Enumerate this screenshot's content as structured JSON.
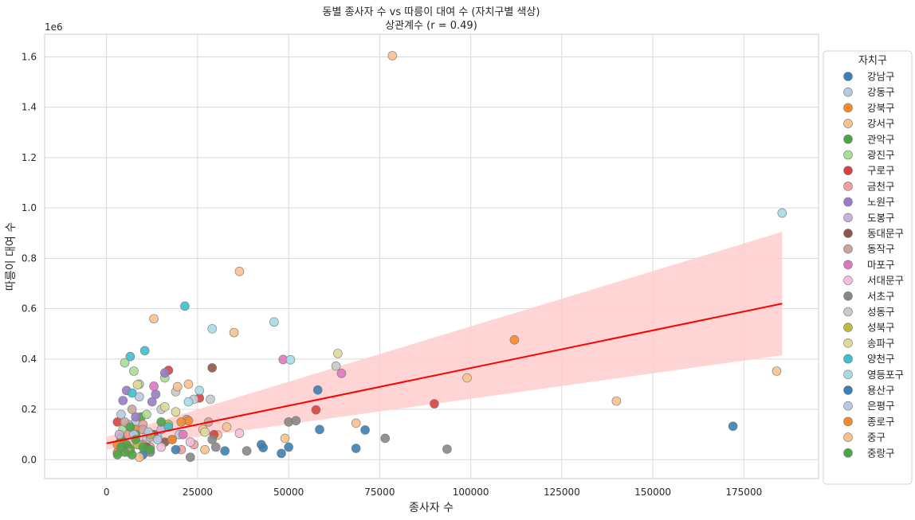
{
  "chart_data": {
    "type": "scatter",
    "title": "동별 종사자 수 vs 따릉이 대여 수 (자치구별 색상)",
    "subtitle": "상관계수 (r = 0.49)",
    "xlabel": "종사자 수",
    "ylabel": "따릉이 대여 수",
    "y_offset_text": "1e6",
    "xlim": [
      -17000,
      195500
    ],
    "ylim": [
      -0.075,
      1.69
    ],
    "y_scale_multiplier": 1000000,
    "x_ticks": [
      0,
      25000,
      50000,
      75000,
      100000,
      125000,
      150000,
      175000
    ],
    "x_tick_labels": [
      "0",
      "25000",
      "50000",
      "75000",
      "100000",
      "125000",
      "150000",
      "175000"
    ],
    "y_ticks": [
      0.0,
      0.2,
      0.4,
      0.6,
      0.8,
      1.0,
      1.2,
      1.4,
      1.6
    ],
    "y_tick_labels": [
      "0.0",
      "0.2",
      "0.4",
      "0.6",
      "0.8",
      "1.0",
      "1.2",
      "1.4",
      "1.6"
    ],
    "grid": true,
    "legend_title": "자치구",
    "legend_position": "outside-right",
    "regression": {
      "color": "#ff0000",
      "band_color": "#ffcccc",
      "x": [
        0,
        185500
      ],
      "y": [
        0.065,
        0.62
      ],
      "ci_upper": [
        0.09,
        0.905
      ],
      "ci_lower": [
        0.04,
        0.415
      ]
    },
    "series": [
      {
        "name": "강남구",
        "color": "#3b7fb4",
        "points": [
          [
            172000,
            0.133
          ],
          [
            68500,
            0.045
          ],
          [
            71000,
            0.118
          ],
          [
            58500,
            0.12
          ],
          [
            48000,
            0.025
          ],
          [
            42500,
            0.06
          ],
          [
            43000,
            0.048
          ],
          [
            50000,
            0.05
          ],
          [
            32500,
            0.035
          ]
        ]
      },
      {
        "name": "강동구",
        "color": "#b7c9e3",
        "points": [
          [
            6500,
            0.12
          ],
          [
            8000,
            0.15
          ],
          [
            9000,
            0.25
          ],
          [
            11000,
            0.08
          ],
          [
            20000,
            0.1
          ],
          [
            14000,
            0.09
          ]
        ]
      },
      {
        "name": "강북구",
        "color": "#f5892b",
        "points": [
          [
            4000,
            0.08
          ],
          [
            5000,
            0.1
          ],
          [
            6000,
            0.05
          ],
          [
            8000,
            0.12
          ],
          [
            3000,
            0.03
          ],
          [
            10000,
            0.06
          ]
        ]
      },
      {
        "name": "강서구",
        "color": "#f8c18e",
        "points": [
          [
            78500,
            1.605
          ],
          [
            36500,
            0.748
          ],
          [
            140000,
            0.233
          ],
          [
            99000,
            0.325
          ],
          [
            184000,
            0.352
          ],
          [
            49000,
            0.085
          ],
          [
            26500,
            0.12
          ],
          [
            30500,
            0.098
          ]
        ]
      },
      {
        "name": "관악구",
        "color": "#4aa546",
        "points": [
          [
            4000,
            0.09
          ],
          [
            5500,
            0.06
          ],
          [
            6500,
            0.04
          ],
          [
            8000,
            0.1
          ],
          [
            9500,
            0.17
          ],
          [
            3000,
            0.02
          ]
        ]
      },
      {
        "name": "광진구",
        "color": "#a8dd95",
        "points": [
          [
            5000,
            0.385
          ],
          [
            7500,
            0.352
          ],
          [
            9000,
            0.3
          ],
          [
            16000,
            0.325
          ],
          [
            11000,
            0.18
          ],
          [
            4500,
            0.12
          ]
        ]
      },
      {
        "name": "구로구",
        "color": "#d9413f",
        "points": [
          [
            90000,
            0.222
          ],
          [
            57500,
            0.198
          ],
          [
            17000,
            0.355
          ],
          [
            25500,
            0.245
          ],
          [
            29500,
            0.1
          ],
          [
            3000,
            0.15
          ]
        ]
      },
      {
        "name": "금천구",
        "color": "#f1a09d",
        "points": [
          [
            6000,
            0.1
          ],
          [
            10000,
            0.14
          ],
          [
            12000,
            0.05
          ],
          [
            20500,
            0.04
          ],
          [
            24000,
            0.06
          ]
        ]
      },
      {
        "name": "노원구",
        "color": "#9a7cc4",
        "points": [
          [
            5500,
            0.275
          ],
          [
            4500,
            0.235
          ],
          [
            13500,
            0.26
          ],
          [
            16000,
            0.345
          ],
          [
            12500,
            0.23
          ],
          [
            8000,
            0.17
          ]
        ]
      },
      {
        "name": "도봉구",
        "color": "#c6b2d7",
        "points": [
          [
            3500,
            0.1
          ],
          [
            6000,
            0.14
          ],
          [
            9000,
            0.06
          ],
          [
            12000,
            0.09
          ],
          [
            15000,
            0.12
          ]
        ]
      },
      {
        "name": "동대문구",
        "color": "#8d584b",
        "points": [
          [
            29000,
            0.365
          ],
          [
            13000,
            0.1
          ],
          [
            16000,
            0.07
          ],
          [
            18000,
            0.08
          ],
          [
            11000,
            0.05
          ]
        ]
      },
      {
        "name": "동작구",
        "color": "#c9a69b",
        "points": [
          [
            5000,
            0.15
          ],
          [
            7000,
            0.2
          ],
          [
            10000,
            0.12
          ],
          [
            28000,
            0.15
          ],
          [
            22000,
            0.16
          ]
        ]
      },
      {
        "name": "마포구",
        "color": "#df77c0",
        "points": [
          [
            64500,
            0.343
          ],
          [
            48500,
            0.398
          ],
          [
            13000,
            0.292
          ],
          [
            21000,
            0.1
          ]
        ]
      },
      {
        "name": "서대문구",
        "color": "#f4bfdd",
        "points": [
          [
            36500,
            0.105
          ],
          [
            23000,
            0.07
          ],
          [
            15000,
            0.05
          ],
          [
            9000,
            0.06
          ]
        ]
      },
      {
        "name": "서초구",
        "color": "#878787",
        "points": [
          [
            76500,
            0.085
          ],
          [
            93500,
            0.042
          ],
          [
            50000,
            0.15
          ],
          [
            52000,
            0.155
          ],
          [
            30000,
            0.05
          ],
          [
            38500,
            0.035
          ],
          [
            29000,
            0.08
          ],
          [
            23000,
            0.01
          ],
          [
            12000,
            0.03
          ]
        ]
      },
      {
        "name": "성동구",
        "color": "#c9c9c9",
        "points": [
          [
            63000,
            0.372
          ],
          [
            28500,
            0.24
          ],
          [
            24000,
            0.24
          ],
          [
            19000,
            0.27
          ],
          [
            15000,
            0.2
          ]
        ]
      },
      {
        "name": "성북구",
        "color": "#bbbc3f",
        "points": [
          [
            8500,
            0.06
          ],
          [
            12000,
            0.1
          ],
          [
            17000,
            0.14
          ],
          [
            6000,
            0.03
          ]
        ]
      },
      {
        "name": "송파구",
        "color": "#dcdc9a",
        "points": [
          [
            63500,
            0.422
          ],
          [
            8500,
            0.298
          ],
          [
            16000,
            0.21
          ],
          [
            19000,
            0.19
          ],
          [
            27000,
            0.11
          ]
        ]
      },
      {
        "name": "양천구",
        "color": "#3ebfcc",
        "points": [
          [
            21500,
            0.61
          ],
          [
            10500,
            0.433
          ],
          [
            6500,
            0.41
          ],
          [
            7000,
            0.265
          ],
          [
            17000,
            0.13
          ]
        ]
      },
      {
        "name": "영등포구",
        "color": "#a6dbe4",
        "points": [
          [
            185500,
            0.98
          ],
          [
            46000,
            0.547
          ],
          [
            29000,
            0.52
          ],
          [
            50500,
            0.397
          ],
          [
            25500,
            0.275
          ],
          [
            22500,
            0.23
          ]
        ]
      },
      {
        "name": "용산구",
        "color": "#3b7fb4",
        "points": [
          [
            58000,
            0.277
          ],
          [
            19000,
            0.04
          ],
          [
            10000,
            0.02
          ]
        ]
      },
      {
        "name": "은평구",
        "color": "#b7c9e3",
        "points": [
          [
            4000,
            0.18
          ],
          [
            7500,
            0.1
          ],
          [
            11500,
            0.11
          ],
          [
            14000,
            0.08
          ]
        ]
      },
      {
        "name": "종로구",
        "color": "#f5892b",
        "points": [
          [
            112000,
            0.476
          ],
          [
            22500,
            0.155
          ],
          [
            20500,
            0.15
          ],
          [
            18000,
            0.08
          ],
          [
            3000,
            0.06
          ]
        ]
      },
      {
        "name": "중구",
        "color": "#f8c18e",
        "points": [
          [
            13000,
            0.56
          ],
          [
            35000,
            0.505
          ],
          [
            22500,
            0.3
          ],
          [
            19500,
            0.29
          ],
          [
            68500,
            0.145
          ],
          [
            33000,
            0.13
          ],
          [
            27000,
            0.04
          ],
          [
            9000,
            0.01
          ]
        ]
      },
      {
        "name": "중랑구",
        "color": "#4aa546",
        "points": [
          [
            5000,
            0.03
          ],
          [
            6500,
            0.13
          ],
          [
            8000,
            0.08
          ],
          [
            10000,
            0.05
          ],
          [
            12000,
            0.04
          ],
          [
            15000,
            0.15
          ],
          [
            4000,
            0.05
          ],
          [
            7000,
            0.02
          ]
        ]
      }
    ]
  }
}
